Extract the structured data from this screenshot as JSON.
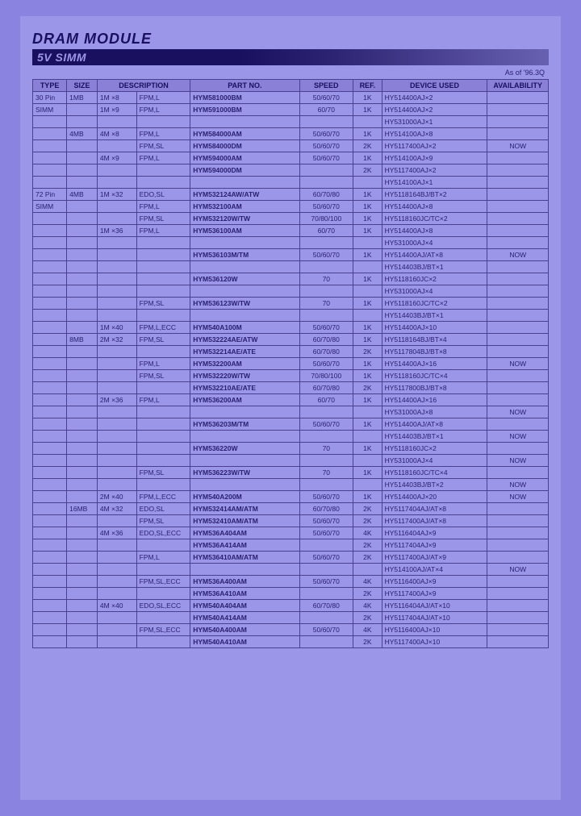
{
  "header": {
    "title_main": "DRAM MODULE",
    "title_sub": "5V SIMM",
    "date_note": "As of '96.3Q"
  },
  "columns": [
    "TYPE",
    "SIZE",
    "DESCRIPTION",
    "PART NO.",
    "SPEED",
    "REF.",
    "DEVICE USED",
    "AVAILABILITY"
  ],
  "rows": [
    {
      "type": "30 Pin",
      "size": "1MB",
      "d1": "1M ×8",
      "d2": "FPM,L",
      "part": "HYM581000BM",
      "speed": "50/60/70",
      "ref": "1K",
      "dev": "HY514400AJ×2",
      "avail": ""
    },
    {
      "type": "SIMM",
      "size": "",
      "d1": "1M ×9",
      "d2": "FPM,L",
      "part": "HYM591000BM",
      "speed": "60/70",
      "ref": "1K",
      "dev": "HY514400AJ×2",
      "avail": ""
    },
    {
      "type": "",
      "size": "",
      "d1": "",
      "d2": "",
      "part": "",
      "speed": "",
      "ref": "",
      "dev": "HY531000AJ×1",
      "avail": ""
    },
    {
      "type": "",
      "size": "4MB",
      "d1": "4M ×8",
      "d2": "FPM,L",
      "part": "HYM584000AM",
      "speed": "50/60/70",
      "ref": "1K",
      "dev": "HY514100AJ×8",
      "avail": ""
    },
    {
      "type": "",
      "size": "",
      "d1": "",
      "d2": "FPM,SL",
      "part": "HYM584000DM",
      "speed": "50/60/70",
      "ref": "2K",
      "dev": "HY5117400AJ×2",
      "avail": "NOW"
    },
    {
      "type": "",
      "size": "",
      "d1": "4M ×9",
      "d2": "FPM,L",
      "part": "HYM594000AM",
      "speed": "50/60/70",
      "ref": "1K",
      "dev": "HY514100AJ×9",
      "avail": ""
    },
    {
      "type": "",
      "size": "",
      "d1": "",
      "d2": "",
      "part": "HYM594000DM",
      "speed": "",
      "ref": "2K",
      "dev": "HY5117400AJ×2",
      "avail": ""
    },
    {
      "type": "",
      "size": "",
      "d1": "",
      "d2": "",
      "part": "",
      "speed": "",
      "ref": "",
      "dev": "HY514100AJ×1",
      "avail": ""
    },
    {
      "type": "72 Pin",
      "size": "4MB",
      "d1": "1M ×32",
      "d2": "EDO,SL",
      "part": "HYM532124AW/ATW",
      "speed": "60/70/80",
      "ref": "1K",
      "dev": "HY5118164BJ/BT×2",
      "avail": ""
    },
    {
      "type": "SIMM",
      "size": "",
      "d1": "",
      "d2": "FPM,L",
      "part": "HYM532100AM",
      "speed": "50/60/70",
      "ref": "1K",
      "dev": "HY514400AJ×8",
      "avail": ""
    },
    {
      "type": "",
      "size": "",
      "d1": "",
      "d2": "FPM,SL",
      "part": "HYM532120W/TW",
      "speed": "70/80/100",
      "ref": "1K",
      "dev": "HY5118160JC/TC×2",
      "avail": ""
    },
    {
      "type": "",
      "size": "",
      "d1": "1M ×36",
      "d2": "FPM,L",
      "part": "HYM536100AM",
      "speed": "60/70",
      "ref": "1K",
      "dev": "HY514400AJ×8",
      "avail": ""
    },
    {
      "type": "",
      "size": "",
      "d1": "",
      "d2": "",
      "part": "",
      "speed": "",
      "ref": "",
      "dev": "HY531000AJ×4",
      "avail": ""
    },
    {
      "type": "",
      "size": "",
      "d1": "",
      "d2": "",
      "part": "HYM536103M/TM",
      "speed": "50/60/70",
      "ref": "1K",
      "dev": "HY514400AJ/AT×8",
      "avail": "NOW"
    },
    {
      "type": "",
      "size": "",
      "d1": "",
      "d2": "",
      "part": "",
      "speed": "",
      "ref": "",
      "dev": "HY514403BJ/BT×1",
      "avail": ""
    },
    {
      "type": "",
      "size": "",
      "d1": "",
      "d2": "",
      "part": "HYM536120W",
      "speed": "70",
      "ref": "1K",
      "dev": "HY5118160JC×2",
      "avail": ""
    },
    {
      "type": "",
      "size": "",
      "d1": "",
      "d2": "",
      "part": "",
      "speed": "",
      "ref": "",
      "dev": "HY531000AJ×4",
      "avail": ""
    },
    {
      "type": "",
      "size": "",
      "d1": "",
      "d2": "FPM,SL",
      "part": "HYM536123W/TW",
      "speed": "70",
      "ref": "1K",
      "dev": "HY5118160JC/TC×2",
      "avail": ""
    },
    {
      "type": "",
      "size": "",
      "d1": "",
      "d2": "",
      "part": "",
      "speed": "",
      "ref": "",
      "dev": "HY514403BJ/BT×1",
      "avail": ""
    },
    {
      "type": "",
      "size": "",
      "d1": "1M ×40",
      "d2": "FPM,L,ECC",
      "part": "HYM540A100M",
      "speed": "50/60/70",
      "ref": "1K",
      "dev": "HY514400AJ×10",
      "avail": ""
    },
    {
      "type": "",
      "size": "8MB",
      "d1": "2M ×32",
      "d2": "FPM,SL",
      "part": "HYM532224AE/ATW",
      "speed": "60/70/80",
      "ref": "1K",
      "dev": "HY5118164BJ/BT×4",
      "avail": ""
    },
    {
      "type": "",
      "size": "",
      "d1": "",
      "d2": "",
      "part": "HYM532214AE/ATE",
      "speed": "60/70/80",
      "ref": "2K",
      "dev": "HY5117804BJ/BT×8",
      "avail": ""
    },
    {
      "type": "",
      "size": "",
      "d1": "",
      "d2": "FPM,L",
      "part": "HYM532200AM",
      "speed": "50/60/70",
      "ref": "1K",
      "dev": "HY514400AJ×16",
      "avail": "NOW"
    },
    {
      "type": "",
      "size": "",
      "d1": "",
      "d2": "FPM,SL",
      "part": "HYM532220W/TW",
      "speed": "70/80/100",
      "ref": "1K",
      "dev": "HY5118160JC/TC×4",
      "avail": ""
    },
    {
      "type": "",
      "size": "",
      "d1": "",
      "d2": "",
      "part": "HYM532210AE/ATE",
      "speed": "60/70/80",
      "ref": "2K",
      "dev": "HY5117800BJ/BT×8",
      "avail": ""
    },
    {
      "type": "",
      "size": "",
      "d1": "2M ×36",
      "d2": "FPM,L",
      "part": "HYM536200AM",
      "speed": "60/70",
      "ref": "1K",
      "dev": "HY514400AJ×16",
      "avail": ""
    },
    {
      "type": "",
      "size": "",
      "d1": "",
      "d2": "",
      "part": "",
      "speed": "",
      "ref": "",
      "dev": "HY531000AJ×8",
      "avail": "NOW"
    },
    {
      "type": "",
      "size": "",
      "d1": "",
      "d2": "",
      "part": "HYM536203M/TM",
      "speed": "50/60/70",
      "ref": "1K",
      "dev": "HY514400AJ/AT×8",
      "avail": ""
    },
    {
      "type": "",
      "size": "",
      "d1": "",
      "d2": "",
      "part": "",
      "speed": "",
      "ref": "",
      "dev": "HY514403BJ/BT×1",
      "avail": "NOW"
    },
    {
      "type": "",
      "size": "",
      "d1": "",
      "d2": "",
      "part": "HYM536220W",
      "speed": "70",
      "ref": "1K",
      "dev": "HY5118160JC×2",
      "avail": ""
    },
    {
      "type": "",
      "size": "",
      "d1": "",
      "d2": "",
      "part": "",
      "speed": "",
      "ref": "",
      "dev": "HY531000AJ×4",
      "avail": "NOW"
    },
    {
      "type": "",
      "size": "",
      "d1": "",
      "d2": "FPM,SL",
      "part": "HYM536223W/TW",
      "speed": "70",
      "ref": "1K",
      "dev": "HY5118160JC/TC×4",
      "avail": ""
    },
    {
      "type": "",
      "size": "",
      "d1": "",
      "d2": "",
      "part": "",
      "speed": "",
      "ref": "",
      "dev": "HY514403BJ/BT×2",
      "avail": "NOW"
    },
    {
      "type": "",
      "size": "",
      "d1": "2M ×40",
      "d2": "FPM,L,ECC",
      "part": "HYM540A200M",
      "speed": "50/60/70",
      "ref": "1K",
      "dev": "HY514400AJ×20",
      "avail": "NOW"
    },
    {
      "type": "",
      "size": "16MB",
      "d1": "4M ×32",
      "d2": "EDO,SL",
      "part": "HYM532414AM/ATM",
      "speed": "60/70/80",
      "ref": "2K",
      "dev": "HY5117404AJ/AT×8",
      "avail": ""
    },
    {
      "type": "",
      "size": "",
      "d1": "",
      "d2": "FPM,SL",
      "part": "HYM532410AM/ATM",
      "speed": "50/60/70",
      "ref": "2K",
      "dev": "HY5117400AJ/AT×8",
      "avail": ""
    },
    {
      "type": "",
      "size": "",
      "d1": "4M ×36",
      "d2": "EDO,SL,ECC",
      "part": "HYM536A404AM",
      "speed": "50/60/70",
      "ref": "4K",
      "dev": "HY5116404AJ×9",
      "avail": ""
    },
    {
      "type": "",
      "size": "",
      "d1": "",
      "d2": "",
      "part": "HYM536A414AM",
      "speed": "",
      "ref": "2K",
      "dev": "HY5117404AJ×9",
      "avail": ""
    },
    {
      "type": "",
      "size": "",
      "d1": "",
      "d2": "FPM,L",
      "part": "HYM536410AM/ATM",
      "speed": "50/60/70",
      "ref": "2K",
      "dev": "HY5117400AJ/AT×9",
      "avail": ""
    },
    {
      "type": "",
      "size": "",
      "d1": "",
      "d2": "",
      "part": "",
      "speed": "",
      "ref": "",
      "dev": "HY514100AJ/AT×4",
      "avail": "NOW"
    },
    {
      "type": "",
      "size": "",
      "d1": "",
      "d2": "FPM,SL,ECC",
      "part": "HYM536A400AM",
      "speed": "50/60/70",
      "ref": "4K",
      "dev": "HY5116400AJ×9",
      "avail": ""
    },
    {
      "type": "",
      "size": "",
      "d1": "",
      "d2": "",
      "part": "HYM536A410AM",
      "speed": "",
      "ref": "2K",
      "dev": "HY5117400AJ×9",
      "avail": ""
    },
    {
      "type": "",
      "size": "",
      "d1": "4M ×40",
      "d2": "EDO,SL,ECC",
      "part": "HYM540A404AM",
      "speed": "60/70/80",
      "ref": "4K",
      "dev": "HY5116404AJ/AT×10",
      "avail": ""
    },
    {
      "type": "",
      "size": "",
      "d1": "",
      "d2": "",
      "part": "HYM540A414AM",
      "speed": "",
      "ref": "2K",
      "dev": "HY5117404AJ/AT×10",
      "avail": ""
    },
    {
      "type": "",
      "size": "",
      "d1": "",
      "d2": "FPM,SL,ECC",
      "part": "HYM540A400AM",
      "speed": "50/60/70",
      "ref": "4K",
      "dev": "HY5116400AJ×10",
      "avail": ""
    },
    {
      "type": "",
      "size": "",
      "d1": "",
      "d2": "",
      "part": "HYM540A410AM",
      "speed": "",
      "ref": "2K",
      "dev": "HY5117400AJ×10",
      "avail": ""
    }
  ]
}
